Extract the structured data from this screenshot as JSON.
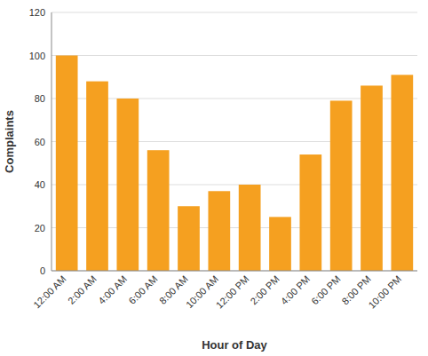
{
  "chart_data": {
    "type": "bar",
    "categories": [
      "12:00 AM",
      "2:00 AM",
      "4:00 AM",
      "6:00 AM",
      "8:00 AM",
      "10:00 AM",
      "12:00 PM",
      "2:00 PM",
      "4:00 PM",
      "6:00 PM",
      "8:00 PM",
      "10:00 PM"
    ],
    "values": [
      100,
      88,
      80,
      56,
      30,
      37,
      40,
      25,
      54,
      79,
      86,
      91
    ],
    "color": "#F5A020",
    "xlabel": "Hour of Day",
    "ylabel": "Complaints",
    "ylim": [
      0,
      120
    ],
    "yticks": [
      0,
      20,
      40,
      60,
      80,
      100,
      120
    ],
    "grid": true
  }
}
